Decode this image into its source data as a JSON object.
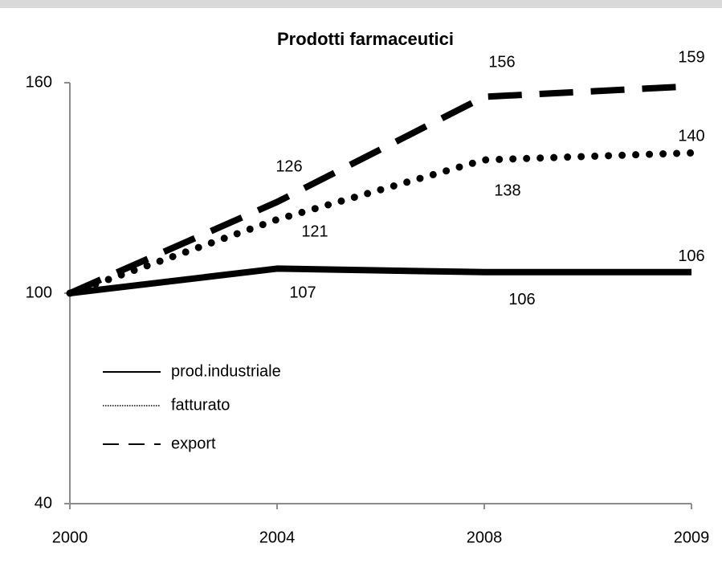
{
  "chart_data": {
    "type": "line",
    "title": "Prodotti farmaceutici",
    "categories": [
      "2000",
      "2004",
      "2008",
      "2009"
    ],
    "series": [
      {
        "name": "prod.industriale",
        "color": "#000000",
        "line_style": "solid",
        "values": [
          100,
          107,
          106,
          106
        ]
      },
      {
        "name": "fatturato",
        "color": "#000000",
        "line_style": "dotted",
        "values": [
          100,
          121,
          138,
          140
        ]
      },
      {
        "name": "export",
        "color": "#000000",
        "line_style": "dashed",
        "values": [
          100,
          126,
          156,
          159
        ]
      }
    ],
    "ylim": [
      40,
      160
    ],
    "yticks": [
      40,
      100,
      160
    ],
    "grid": false,
    "legend": "left"
  }
}
